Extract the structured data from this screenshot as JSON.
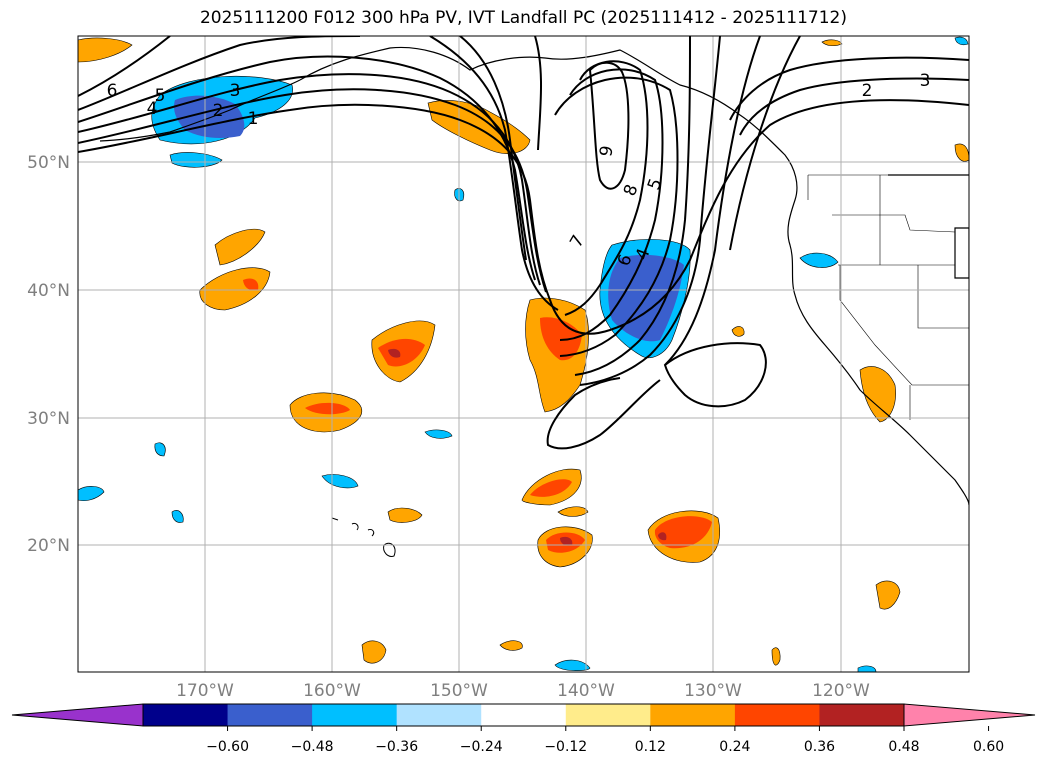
{
  "title": "2025111200 F012 300 hPa PV, IVT Landfall PC (2025111412 - 2025111712)",
  "map": {
    "lat_labels": [
      "50°N",
      "40°N",
      "30°N",
      "20°N"
    ],
    "lon_labels": [
      "170°W",
      "160°W",
      "150°W",
      "140°W",
      "130°W",
      "120°W"
    ],
    "contour_labels": [
      "6",
      "5",
      "4",
      "3",
      "2",
      "1",
      "2",
      "3",
      "9",
      "8",
      "5",
      "7",
      "6",
      "4"
    ]
  },
  "colorbar": {
    "ticks": [
      "−0.60",
      "−0.48",
      "−0.36",
      "−0.24",
      "−0.12",
      "0.12",
      "0.24",
      "0.36",
      "0.48",
      "0.60"
    ],
    "colors": [
      "#9932cc",
      "#00008b",
      "#3a5fcd",
      "#00bfff",
      "#b0e2ff",
      "#ffffff",
      "#ffec8b",
      "#ffa500",
      "#ff4500",
      "#b22222",
      "#ff82ab"
    ]
  },
  "shading_colors": {
    "neg_light": "#00bfff",
    "neg_mid": "#3a5fcd",
    "pos_light": "#ffa500",
    "pos_mid": "#ff4500",
    "pos_dark": "#b22222"
  }
}
